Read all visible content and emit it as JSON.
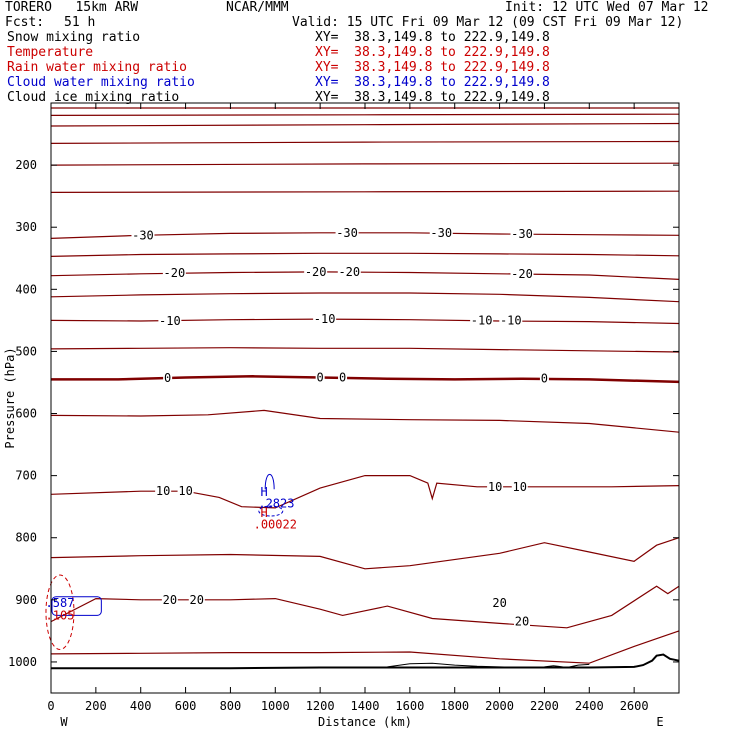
{
  "header": {
    "model": "TORERO   15km ARW",
    "center": "NCAR/MMM",
    "init": "Init: 12 UTC Wed 07 Mar 12",
    "fcst_label": "Fcst:",
    "fcst_value": "51 h",
    "valid": "Valid: 15 UTC Fri 09 Mar 12 (09 CST Fri 09 Mar 12)"
  },
  "fields": [
    {
      "name": "Snow mixing ratio",
      "xy": "XY=  38.3,149.8 to 222.9,149.8",
      "color": "#000000"
    },
    {
      "name": "Temperature",
      "xy": "XY=  38.3,149.8 to 222.9,149.8",
      "color": "#cc0000"
    },
    {
      "name": "Rain water mixing ratio",
      "xy": "XY=  38.3,149.8 to 222.9,149.8",
      "color": "#cc0000"
    },
    {
      "name": "Cloud water mixing ratio",
      "xy": "XY=  38.3,149.8 to 222.9,149.8",
      "color": "#0000cc"
    },
    {
      "name": "Cloud ice mixing ratio",
      "xy": "XY=  38.3,149.8 to 222.9,149.8",
      "color": "#000000"
    }
  ],
  "chart_data": {
    "type": "line",
    "xlabel": "Distance (km)",
    "ylabel": "Pressure (hPa)",
    "xlim": [
      0,
      2800
    ],
    "ylim": [
      1050,
      100
    ],
    "xticks": [
      0,
      200,
      400,
      600,
      800,
      1000,
      1200,
      1400,
      1600,
      1800,
      2000,
      2200,
      2400,
      2600
    ],
    "yticks": [
      200,
      300,
      400,
      500,
      600,
      700,
      800,
      900,
      1000
    ],
    "x_end_labels": {
      "left": "W",
      "right": "E"
    },
    "contour_color": "#800000",
    "isotherms": [
      {
        "value": -60,
        "x": [
          0,
          1400,
          2800
        ],
        "p": [
          108,
          108,
          108
        ]
      },
      {
        "value": -55,
        "x": [
          0,
          1400,
          2800
        ],
        "p": [
          120,
          119,
          118
        ]
      },
      {
        "value": -50,
        "x": [
          0,
          1400,
          2800
        ],
        "p": [
          137,
          135,
          133
        ]
      },
      {
        "value": -45,
        "x": [
          0,
          1400,
          2800
        ],
        "p": [
          165,
          163,
          162
        ]
      },
      {
        "value": -40,
        "x": [
          0,
          1400,
          2800
        ],
        "p": [
          200,
          198,
          197
        ]
      },
      {
        "value": -35,
        "x": [
          0,
          1400,
          2800
        ],
        "p": [
          244,
          243,
          242
        ]
      },
      {
        "value": -30,
        "x": [
          0,
          400,
          800,
          1200,
          1600,
          2000,
          2400,
          2800
        ],
        "p": [
          318,
          313,
          310,
          309,
          309,
          311,
          312,
          313
        ]
      },
      {
        "value": -25,
        "x": [
          0,
          400,
          800,
          1200,
          1600,
          2000,
          2400,
          2800
        ],
        "p": [
          347,
          344,
          343,
          342,
          342,
          343,
          344,
          346
        ]
      },
      {
        "value": -20,
        "x": [
          0,
          400,
          800,
          1200,
          1600,
          2000,
          2400,
          2800
        ],
        "p": [
          378,
          375,
          373,
          372,
          373,
          375,
          377,
          384
        ]
      },
      {
        "value": -15,
        "x": [
          0,
          400,
          800,
          1200,
          1600,
          2000,
          2400,
          2800
        ],
        "p": [
          412,
          409,
          407,
          406,
          406,
          408,
          413,
          420
        ]
      },
      {
        "value": -10,
        "x": [
          0,
          400,
          800,
          1200,
          1600,
          2000,
          2400,
          2800
        ],
        "p": [
          450,
          451,
          449,
          448,
          449,
          451,
          452,
          455
        ]
      },
      {
        "value": -5,
        "x": [
          0,
          400,
          800,
          1200,
          1600,
          2000,
          2400,
          2800
        ],
        "p": [
          496,
          495,
          494,
          495,
          495,
          497,
          499,
          501
        ]
      },
      {
        "value": 0,
        "x": [
          0,
          300,
          600,
          900,
          1200,
          1500,
          1800,
          2100,
          2400,
          2800
        ],
        "p": [
          545,
          545,
          542,
          540,
          542,
          544,
          545,
          544,
          545,
          549
        ]
      },
      {
        "value": 5,
        "x": [
          0,
          400,
          700,
          950,
          1200,
          1600,
          2000,
          2400,
          2800
        ],
        "p": [
          603,
          604,
          602,
          595,
          608,
          610,
          611,
          616,
          630
        ]
      },
      {
        "value": 10,
        "x": [
          0,
          400,
          600,
          750,
          850,
          1000,
          1200,
          1400,
          1600,
          1680,
          1700,
          1720,
          1900,
          2200,
          2500,
          2800
        ],
        "p": [
          730,
          725,
          725,
          735,
          750,
          752,
          720,
          700,
          700,
          712,
          737,
          712,
          718,
          718,
          718,
          716
        ]
      },
      {
        "value": 15,
        "x": [
          0,
          400,
          800,
          1200,
          1400,
          1600,
          2000,
          2200,
          2400,
          2600,
          2700,
          2800
        ],
        "p": [
          832,
          829,
          827,
          830,
          850,
          845,
          825,
          808,
          823,
          838,
          812,
          800
        ]
      },
      {
        "value": 20,
        "x": [
          0,
          200,
          400,
          600,
          800,
          1000,
          1200,
          1300,
          1500,
          1700,
          2000,
          2300,
          2500,
          2700,
          2750,
          2800
        ],
        "p": [
          935,
          898,
          900,
          900,
          900,
          898,
          915,
          925,
          910,
          930,
          938,
          945,
          925,
          878,
          890,
          878
        ]
      },
      {
        "value": 25,
        "x": [
          0,
          400,
          800,
          1200,
          1600,
          2000,
          2400,
          2600,
          2800
        ],
        "p": [
          987,
          986,
          985,
          985,
          984,
          995,
          1002,
          975,
          950
        ]
      }
    ],
    "isotherm_labels": [
      {
        "text": "-30",
        "x": 410,
        "p": 313
      },
      {
        "text": "-30",
        "x": 1320,
        "p": 309
      },
      {
        "text": "-30",
        "x": 1740,
        "p": 309
      },
      {
        "text": "-30",
        "x": 2100,
        "p": 311
      },
      {
        "text": "-20",
        "x": 550,
        "p": 374
      },
      {
        "text": "-20",
        "x": 1180,
        "p": 372
      },
      {
        "text": "-20",
        "x": 1330,
        "p": 372
      },
      {
        "text": "-20",
        "x": 2100,
        "p": 375
      },
      {
        "text": "-10",
        "x": 530,
        "p": 451
      },
      {
        "text": "-10",
        "x": 1220,
        "p": 448
      },
      {
        "text": "-10",
        "x": 1920,
        "p": 450
      },
      {
        "text": "-10",
        "x": 2050,
        "p": 450
      },
      {
        "text": "0",
        "x": 520,
        "p": 543
      },
      {
        "text": "0",
        "x": 1200,
        "p": 542
      },
      {
        "text": "0",
        "x": 1300,
        "p": 542
      },
      {
        "text": "0",
        "x": 2200,
        "p": 544
      },
      {
        "text": "10",
        "x": 500,
        "p": 725
      },
      {
        "text": "10",
        "x": 600,
        "p": 725
      },
      {
        "text": "10",
        "x": 1980,
        "p": 718
      },
      {
        "text": "10",
        "x": 2090,
        "p": 718
      },
      {
        "text": "20",
        "x": 530,
        "p": 900
      },
      {
        "text": "20",
        "x": 650,
        "p": 900
      },
      {
        "text": "20",
        "x": 2000,
        "p": 905
      },
      {
        "text": "20",
        "x": 2100,
        "p": 935
      }
    ],
    "ground_surface": {
      "x": [
        0,
        400,
        800,
        1200,
        1600,
        2000,
        2400,
        2600,
        2640,
        2680,
        2700,
        2730,
        2760,
        2800
      ],
      "p": [
        1010,
        1010,
        1010,
        1009,
        1009,
        1009,
        1009,
        1008,
        1005,
        998,
        990,
        988,
        995,
        998
      ]
    },
    "snow_surface": {
      "x": [
        1500,
        1600,
        1700,
        1800,
        1900,
        2000,
        2100,
        2200,
        2240,
        2260,
        2300,
        2350,
        2400
      ],
      "p": [
        1008,
        1003,
        1002,
        1005,
        1007,
        1008,
        1009,
        1008,
        1006,
        1007,
        1009,
        1005,
        1004
      ]
    },
    "annotations": [
      {
        "text": "H",
        "x": 950,
        "p": 726,
        "color": "#0000cc"
      },
      {
        "text": ".2823",
        "x": 1005,
        "p": 745,
        "color": "#0000cc"
      },
      {
        "text": "H",
        "x": 950,
        "p": 760,
        "color": "#cc0000"
      },
      {
        "text": ".00022",
        "x": 1000,
        "p": 779,
        "color": "#cc0000"
      },
      {
        "text": ".587",
        "x": 40,
        "p": 905,
        "color": "#0000cc"
      },
      {
        "text": ".105",
        "x": 40,
        "p": 925,
        "color": "#cc0000"
      }
    ]
  }
}
